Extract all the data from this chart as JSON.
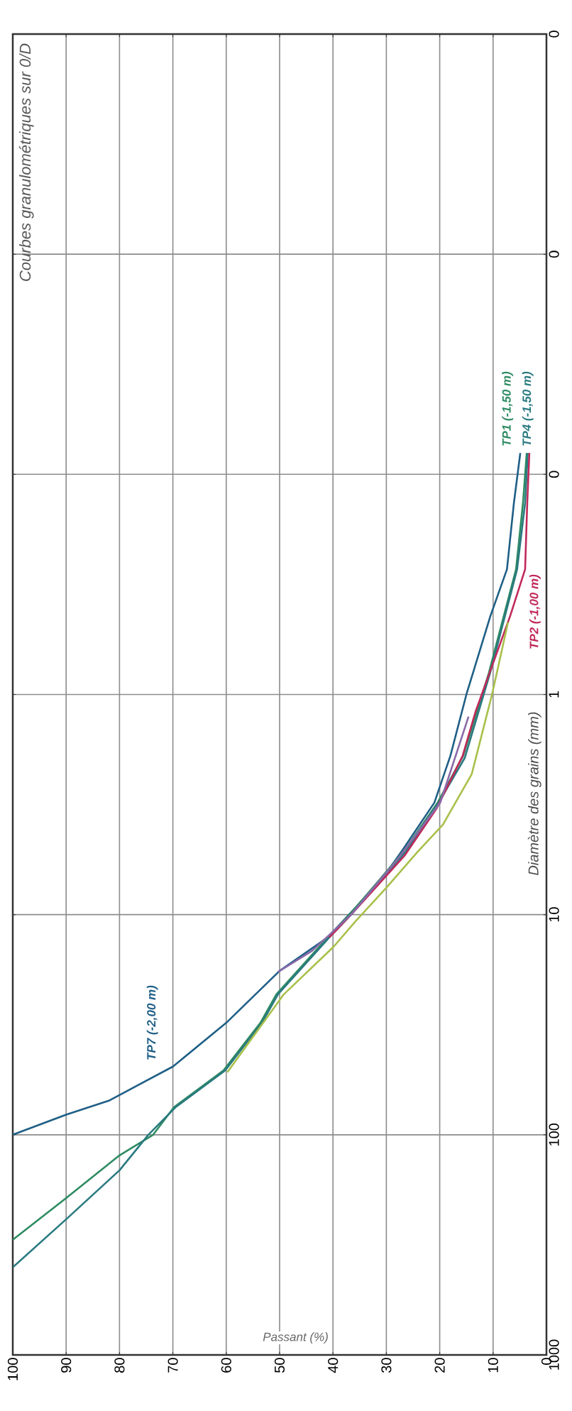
{
  "chart_data": {
    "type": "line",
    "title": "Courbes granulométriques sur 0/D",
    "xlabel": "Passant (%)",
    "ylabel": "Diamètre des grains (mm)",
    "log": "y",
    "grid": true,
    "xlim": [
      100,
      0
    ],
    "ylim": [
      1000,
      0.001
    ],
    "xticks": [
      0,
      10,
      20,
      30,
      40,
      50,
      60,
      70,
      80,
      90,
      100
    ],
    "yticks": [
      1000,
      100,
      10,
      1,
      {
        "value": 0.1,
        "label": "0"
      },
      {
        "value": 0.01,
        "label": "0"
      },
      {
        "value": 0.001,
        "label": "0"
      }
    ],
    "series": [
      {
        "name": "TP7 (-2,00 m)",
        "color": "#1f5f86",
        "values": [
          0.08,
          0.135,
          0.27,
          0.44,
          1,
          1.9,
          3.1,
          5.1,
          7,
          10,
          12.7,
          18,
          31,
          49,
          70,
          81,
          100
        ],
        "x": [
          4.9,
          6.1,
          7.4,
          10.5,
          15,
          18,
          21,
          27,
          31,
          37,
          41,
          50,
          60,
          70,
          82,
          90,
          100
        ]
      },
      {
        "name": "TP1 (-1,50 m)",
        "color": "#2e8b62",
        "values": [
          0.08,
          0.135,
          0.27,
          0.8,
          1.9,
          3.1,
          5.1,
          7,
          10,
          12.7,
          23,
          31,
          51,
          75,
          100,
          124,
          194,
          300
        ],
        "x": [
          3.7,
          4.4,
          5.7,
          10.8,
          15.6,
          20.4,
          26.6,
          31.4,
          36.9,
          41,
          50.6,
          53.6,
          60.5,
          69.8,
          73.7,
          80,
          90,
          100
        ]
      },
      {
        "name": "TP4 (-1,50 m)",
        "color": "#2a7a80",
        "values": [
          0.08,
          0.135,
          0.27,
          0.79,
          1.94,
          3.07,
          5.15,
          7,
          10,
          12.7,
          23,
          31,
          51,
          75,
          100,
          145,
          242,
          400
        ],
        "x": [
          3.5,
          4,
          5.5,
          10.5,
          15.3,
          20.1,
          26.3,
          31.1,
          36.6,
          40.7,
          50.3,
          53.3,
          60.2,
          69.5,
          74.6,
          80,
          90,
          100
        ]
      },
      {
        "name": "TP2 (-1,00 m)",
        "color": "#c02a5a",
        "values": [
          0.08,
          0.135,
          0.27,
          0.44,
          1.2,
          1.9,
          3.3,
          5.4,
          10,
          12.7
        ],
        "x": [
          3.2,
          3.6,
          4,
          6.8,
          13.3,
          15.7,
          20.6,
          26.6,
          36.6,
          40.7
        ]
      },
      {
        "color": "#a8c04a",
        "values": [
          0.47,
          1,
          2.3,
          3.9,
          5.2,
          7.5,
          10.8,
          14,
          23,
          52
        ],
        "x": [
          7.2,
          10.2,
          14,
          19.4,
          24.2,
          29.9,
          35.9,
          39.9,
          49.2,
          59.8
        ]
      },
      {
        "color": "#8a6aaa",
        "values": [
          1.26,
          3.1,
          5.6,
          10,
          14.6,
          18.2
        ],
        "x": [
          14.6,
          19.9,
          27.9,
          36.6,
          43.9,
          50.3
        ]
      }
    ]
  }
}
